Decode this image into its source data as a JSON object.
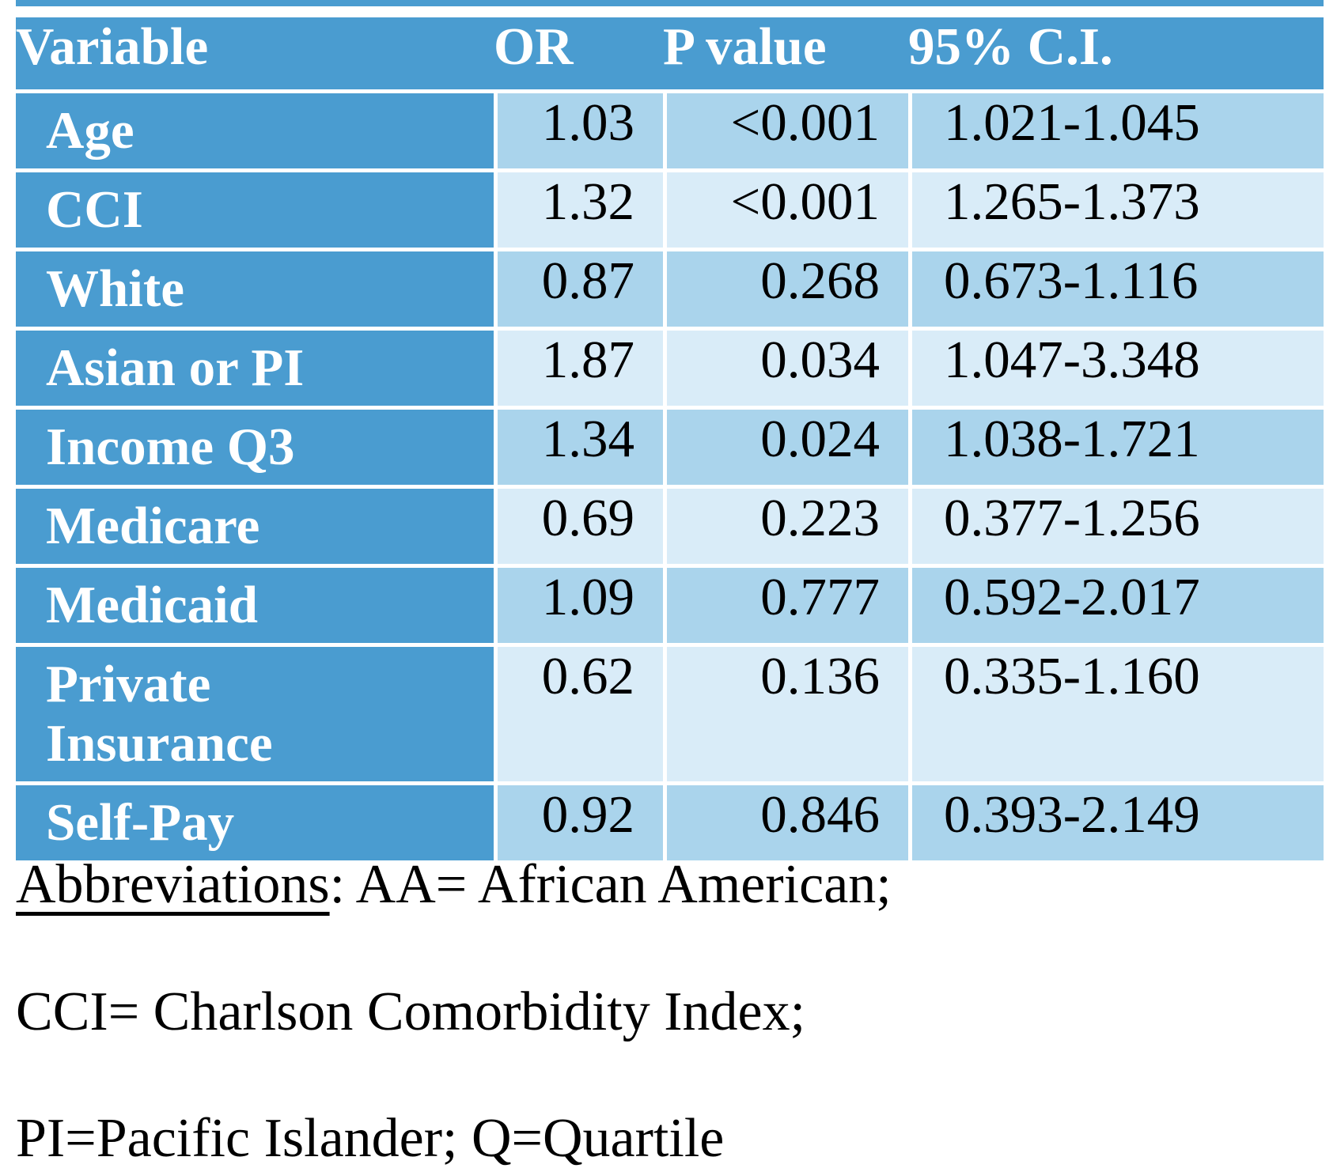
{
  "colors": {
    "header_blue": "#4A9CD0",
    "band_dark": "#AAD4EC",
    "band_light": "#D9ECF8",
    "gridline_white": "#FFFFFF",
    "header_text": "#FFFFFF",
    "body_text": "#000000"
  },
  "table": {
    "columns": [
      "Variable",
      "OR",
      "P value",
      "95% C.I."
    ],
    "rows": [
      {
        "variable": "Age",
        "or": "1.03",
        "p": "<0.001",
        "ci": "1.021-1.045"
      },
      {
        "variable": "CCI",
        "or": "1.32",
        "p": "<0.001",
        "ci": "1.265-1.373"
      },
      {
        "variable": "White",
        "or": "0.87",
        "p": "0.268",
        "ci": "0.673-1.116"
      },
      {
        "variable": "Asian or PI",
        "or": "1.87",
        "p": "0.034",
        "ci": "1.047-3.348"
      },
      {
        "variable": "Income Q3",
        "or": "1.34",
        "p": "0.024",
        "ci": "1.038-1.721"
      },
      {
        "variable": "Medicare",
        "or": "0.69",
        "p": "0.223",
        "ci": "0.377-1.256"
      },
      {
        "variable": "Medicaid",
        "or": "1.09",
        "p": "0.777",
        "ci": "0.592-2.017"
      },
      {
        "variable": "Private Insurance",
        "or": "0.62",
        "p": "0.136",
        "ci": "0.335-1.160"
      },
      {
        "variable": "Self-Pay",
        "or": "0.92",
        "p": "0.846",
        "ci": "0.393-2.149"
      }
    ]
  },
  "footnotes": {
    "abbreviations_label": "Abbreviations",
    "abbreviations_rest": ": AA= African American;",
    "line2": "CCI= Charlson Comorbidity Index;",
    "line3": "PI=Pacific Islander; Q=Quartile"
  }
}
